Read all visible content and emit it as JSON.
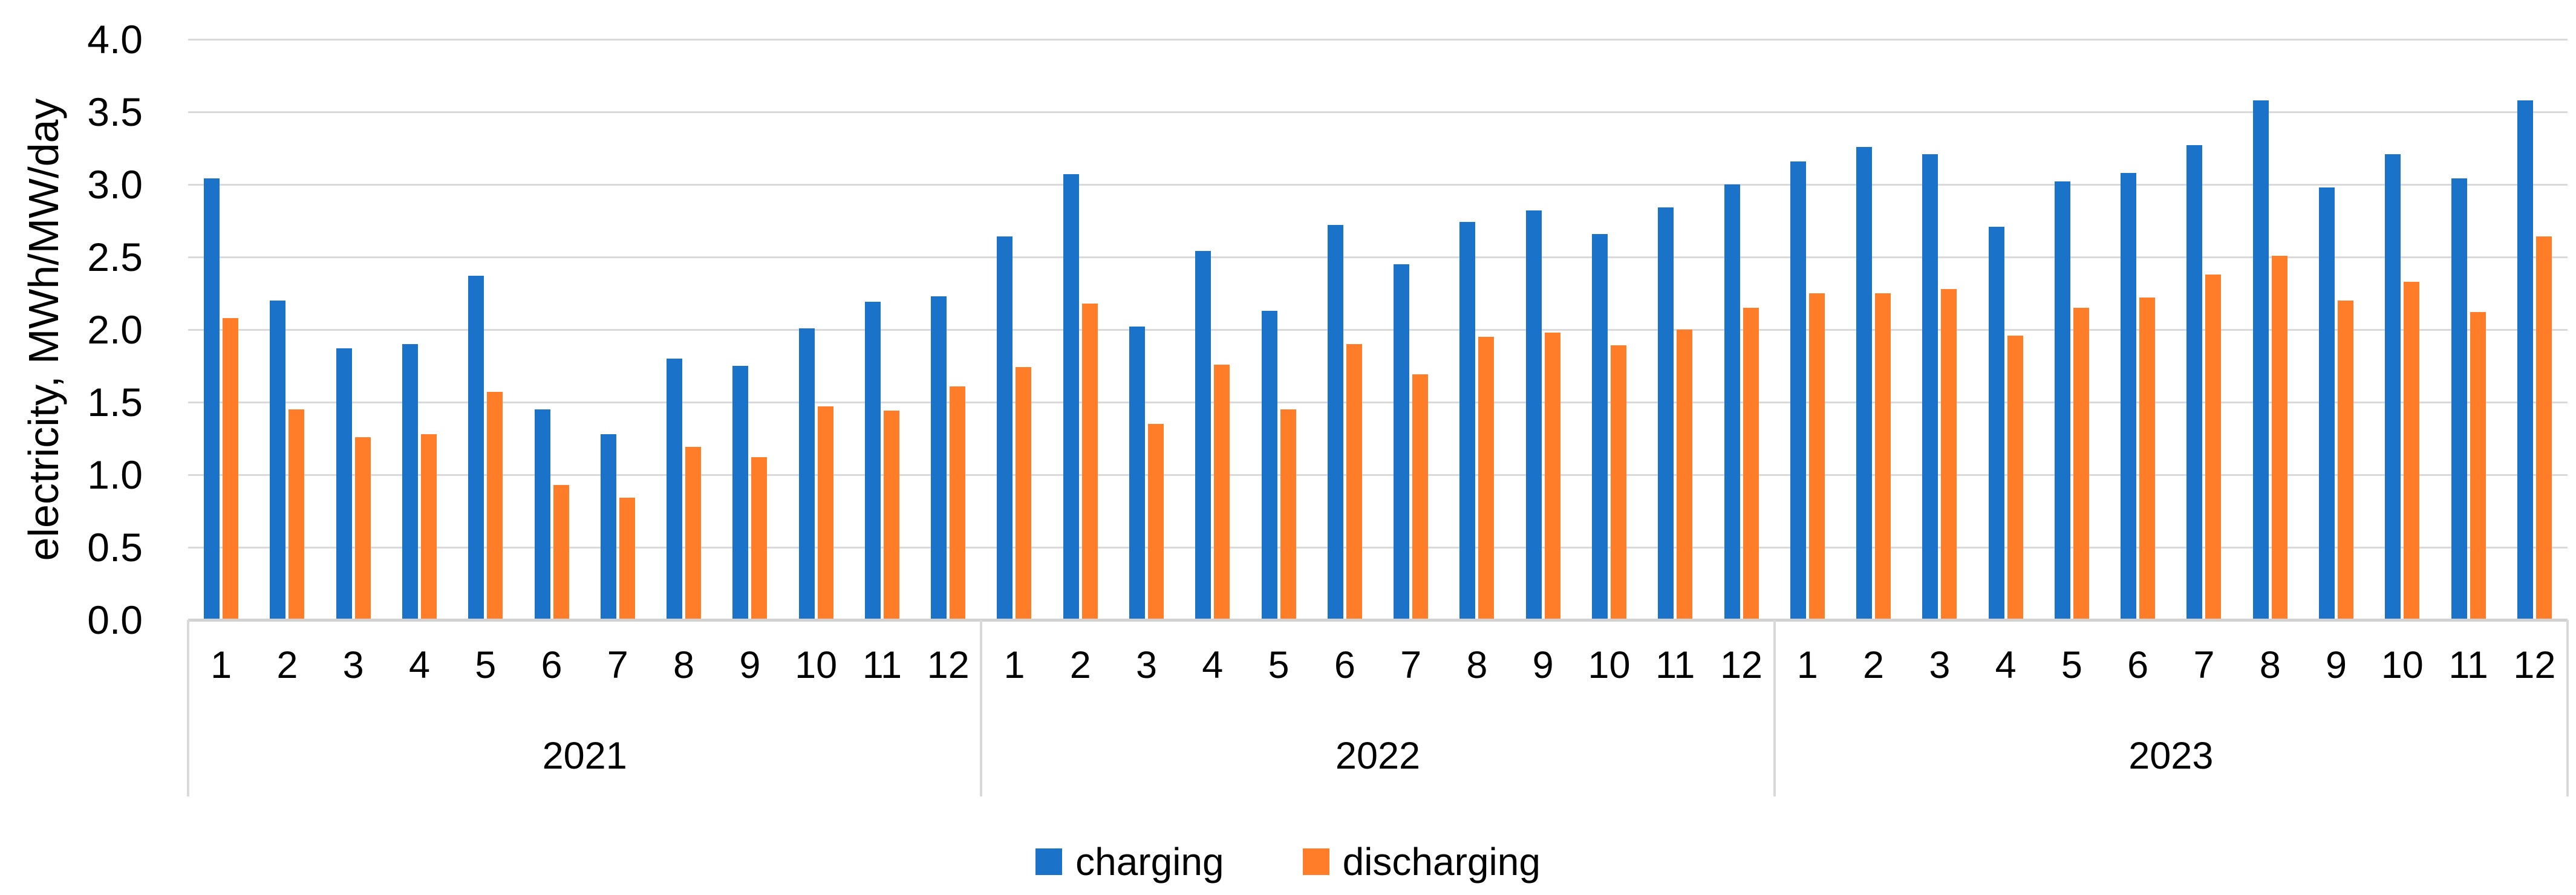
{
  "chart_data": {
    "type": "bar",
    "title": "",
    "ylabel": "electricity, MWh/MW/day",
    "xlabel": "",
    "ylim": [
      0.0,
      4.0
    ],
    "ytick_step": 0.5,
    "ytick_labels_top_to_bottom": [
      "4.0",
      "3.5",
      "3.0",
      "2.5",
      "2.0",
      "1.5",
      "1.0",
      "0.5",
      "0.0"
    ],
    "grid": true,
    "legend_position": "bottom-center",
    "gridline_color": "#D9D9D9",
    "year_groups": [
      {
        "label": "2021",
        "months": [
          "1",
          "2",
          "3",
          "4",
          "5",
          "6",
          "7",
          "8",
          "9",
          "10",
          "11",
          "12"
        ]
      },
      {
        "label": "2022",
        "months": [
          "1",
          "2",
          "3",
          "4",
          "5",
          "6",
          "7",
          "8",
          "9",
          "10",
          "11",
          "12"
        ]
      },
      {
        "label": "2023",
        "months": [
          "1",
          "2",
          "3",
          "4",
          "5",
          "6",
          "7",
          "8",
          "9",
          "10",
          "11",
          "12"
        ]
      }
    ],
    "series": [
      {
        "name": "charging",
        "color": "#1A73C8",
        "values": [
          3.04,
          2.2,
          1.87,
          1.9,
          2.37,
          1.45,
          1.28,
          1.8,
          1.75,
          2.01,
          2.19,
          2.23,
          2.64,
          3.07,
          2.02,
          2.54,
          2.13,
          2.72,
          2.45,
          2.74,
          2.82,
          2.66,
          2.84,
          3.0,
          3.16,
          3.26,
          3.21,
          2.71,
          3.02,
          3.08,
          3.27,
          3.58,
          2.98,
          3.21,
          3.04,
          3.58
        ]
      },
      {
        "name": "discharging",
        "color": "#FF7D28",
        "values": [
          2.08,
          1.45,
          1.26,
          1.28,
          1.57,
          0.93,
          0.84,
          1.19,
          1.12,
          1.47,
          1.44,
          1.61,
          1.74,
          2.18,
          1.35,
          1.76,
          1.45,
          1.9,
          1.69,
          1.95,
          1.98,
          1.89,
          2.0,
          2.15,
          2.25,
          2.25,
          2.28,
          1.96,
          2.15,
          2.22,
          2.38,
          2.51,
          2.2,
          2.33,
          2.12,
          2.64
        ]
      }
    ]
  }
}
